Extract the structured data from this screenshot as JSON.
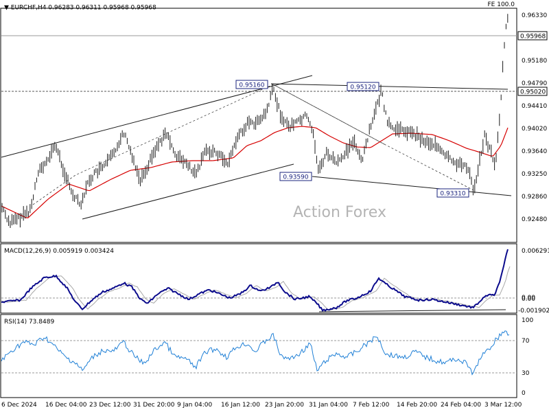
{
  "colors": {
    "background": "#ffffff",
    "border": "#000000",
    "price_line": "#1a1a1a",
    "moving_average": "#d60000",
    "macd_line": "#0a0a8c",
    "signal_line": "#a8a8a8",
    "rsi_line": "#1e7fd6",
    "guide": "#9a9a9a",
    "watermark": "#b4b4b4"
  },
  "main": {
    "header": "▼ EURCHF,H4  0.96283 0.96311 0.95968 0.95968",
    "fe_label": "FE 100.0",
    "watermark": "Action Forex",
    "current_price_tag": "0.95968",
    "level_tag": "0.95020",
    "y_ticks": [
      "0.96330",
      "0.95180",
      "0.94790",
      "0.94410",
      "0.94020",
      "0.93640",
      "0.93250",
      "0.92860",
      "0.92480"
    ],
    "callouts": [
      {
        "text": "0.95160"
      },
      {
        "text": "0.95120"
      },
      {
        "text": "0.93590"
      },
      {
        "text": "0.93310"
      }
    ]
  },
  "macd_panel": {
    "label": "MACD(12,26,9) 0.005919 0.003424",
    "y_ticks": [
      "0.006291",
      "0.00",
      "0.00",
      "-0.001902"
    ]
  },
  "rsi_panel": {
    "label": "RSI(14) 73.8489",
    "y_ticks": [
      "100",
      "70",
      "30",
      "0"
    ]
  },
  "x_axis": {
    "labels": [
      "6 Dec 2024",
      "16 Dec 04:00",
      "23 Dec 12:00",
      "31 Dec 20:00",
      "9 Jan 04:00",
      "16 Jan 12:00",
      "23 Jan 20:00",
      "31 Jan 04:00",
      "7 Feb 12:00",
      "14 Feb 20:00",
      "24 Feb 04:00",
      "3 Mar 12:00"
    ]
  },
  "chart_data": {
    "type": "line",
    "title": "EURCHF,H4",
    "categories": [
      "6 Dec 2024",
      "16 Dec 04:00",
      "23 Dec 12:00",
      "31 Dec 20:00",
      "9 Jan 04:00",
      "16 Jan 12:00",
      "23 Jan 20:00",
      "31 Jan 04:00",
      "7 Feb 12:00",
      "14 Feb 20:00",
      "24 Feb 04:00",
      "3 Mar 12:00"
    ],
    "ohlc_last": {
      "open": 0.96283,
      "high": 0.96311,
      "low": 0.95968,
      "close": 0.95968
    },
    "ylim": [
      0.9248,
      0.9644
    ],
    "series": [
      {
        "values": [
          0.9296,
          0.9371,
          0.9372,
          0.939,
          0.9373,
          0.9399,
          0.9418,
          0.938,
          0.9377,
          0.9373,
          0.9383,
          0.94
        ]
      },
      {
        "values": [
          0.927,
          0.9305,
          0.9345,
          0.9362,
          0.937,
          0.9379,
          0.9421,
          0.9443,
          0.9429,
          0.9422,
          0.9405,
          0.944
        ]
      }
    ],
    "levels": [
      0.95968,
      0.9502
    ],
    "annotated_points": [
      0.9516,
      0.9512,
      0.9359,
      0.9331
    ],
    "macd": {
      "value": 0.005919,
      "signal": 0.003424,
      "ylim": [
        -0.002,
        0.0065
      ]
    },
    "rsi": {
      "value": 73.8489,
      "levels": [
        70,
        30
      ],
      "ylim": [
        0,
        100
      ]
    }
  }
}
